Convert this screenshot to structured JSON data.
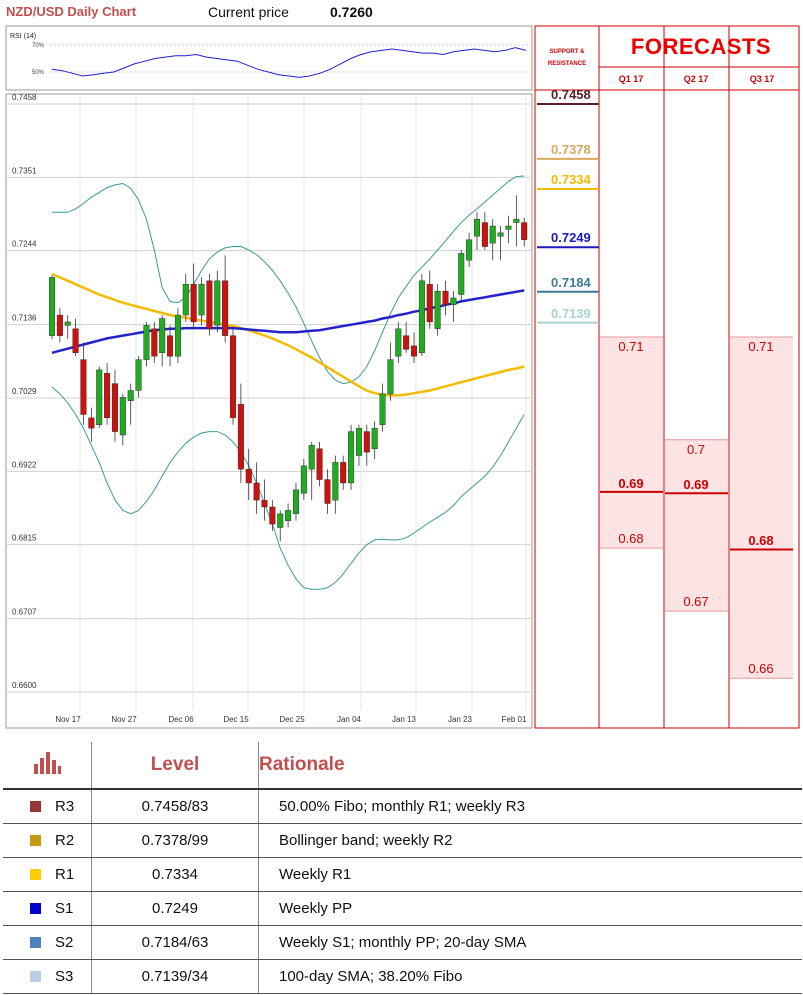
{
  "header": {
    "title": "NZD/USD Daily Chart",
    "current_price_label": "Current price",
    "current_price_value": "0.7260"
  },
  "colors": {
    "bull": "#22aa22",
    "bear": "#cc1111",
    "sma20": "#2222cc",
    "sma100": "#f5bb00",
    "bollinger": "#3a9a9a",
    "grid": "#d0d0d0",
    "forecast_red": "#cc0000",
    "forecast_fill": "#fde3e3"
  },
  "rsi": {
    "label": "RSI (14)",
    "levels": [
      "70%",
      "50%"
    ],
    "values": [
      52,
      51,
      49,
      47,
      48,
      49,
      50,
      53,
      56,
      58,
      60,
      61,
      62,
      62,
      63,
      61,
      60,
      59,
      58,
      55,
      52,
      50,
      48,
      47,
      46,
      47,
      49,
      52,
      56,
      60,
      63,
      65,
      66,
      67,
      66,
      65,
      64,
      64,
      63,
      65,
      66,
      67,
      66,
      65,
      66,
      68,
      66
    ]
  },
  "chart_data": [
    {
      "type": "candlestick",
      "title": "NZD/USD Daily Chart",
      "ylim": [
        0.66,
        0.7458
      ],
      "y_ticks": [
        "0.7458",
        "0.7351",
        "0.7244",
        "0.7136",
        "0.7029",
        "0.6922",
        "0.6815",
        "0.6707",
        "0.6600"
      ],
      "x_ticks": [
        "Nov 17",
        "Nov 27",
        "Dec 06",
        "Dec 15",
        "Dec 25",
        "Jan 04",
        "Jan 13",
        "Jan 23",
        "Feb 01"
      ],
      "candles": [
        {
          "o": 0.712,
          "h": 0.7208,
          "l": 0.7115,
          "c": 0.7205
        },
        {
          "o": 0.715,
          "h": 0.716,
          "l": 0.711,
          "c": 0.712
        },
        {
          "o": 0.7135,
          "h": 0.715,
          "l": 0.7115,
          "c": 0.714
        },
        {
          "o": 0.713,
          "h": 0.7145,
          "l": 0.709,
          "c": 0.7095
        },
        {
          "o": 0.7085,
          "h": 0.711,
          "l": 0.699,
          "c": 0.7005
        },
        {
          "o": 0.7,
          "h": 0.7015,
          "l": 0.6965,
          "c": 0.6985
        },
        {
          "o": 0.699,
          "h": 0.7075,
          "l": 0.6985,
          "c": 0.707
        },
        {
          "o": 0.7065,
          "h": 0.708,
          "l": 0.699,
          "c": 0.7
        },
        {
          "o": 0.705,
          "h": 0.707,
          "l": 0.6965,
          "c": 0.698
        },
        {
          "o": 0.6975,
          "h": 0.7035,
          "l": 0.696,
          "c": 0.703
        },
        {
          "o": 0.7025,
          "h": 0.705,
          "l": 0.699,
          "c": 0.704
        },
        {
          "o": 0.704,
          "h": 0.709,
          "l": 0.703,
          "c": 0.7085
        },
        {
          "o": 0.7085,
          "h": 0.714,
          "l": 0.7075,
          "c": 0.7135
        },
        {
          "o": 0.713,
          "h": 0.714,
          "l": 0.708,
          "c": 0.709
        },
        {
          "o": 0.7095,
          "h": 0.715,
          "l": 0.7075,
          "c": 0.7145
        },
        {
          "o": 0.712,
          "h": 0.7135,
          "l": 0.7075,
          "c": 0.709
        },
        {
          "o": 0.709,
          "h": 0.716,
          "l": 0.708,
          "c": 0.715
        },
        {
          "o": 0.715,
          "h": 0.721,
          "l": 0.714,
          "c": 0.7195
        },
        {
          "o": 0.7195,
          "h": 0.7225,
          "l": 0.713,
          "c": 0.714
        },
        {
          "o": 0.715,
          "h": 0.7205,
          "l": 0.7135,
          "c": 0.7195
        },
        {
          "o": 0.72,
          "h": 0.721,
          "l": 0.712,
          "c": 0.713
        },
        {
          "o": 0.7135,
          "h": 0.7215,
          "l": 0.7125,
          "c": 0.72
        },
        {
          "o": 0.72,
          "h": 0.7237,
          "l": 0.711,
          "c": 0.712
        },
        {
          "o": 0.712,
          "h": 0.713,
          "l": 0.699,
          "c": 0.7
        },
        {
          "o": 0.702,
          "h": 0.705,
          "l": 0.6905,
          "c": 0.6925
        },
        {
          "o": 0.6925,
          "h": 0.6955,
          "l": 0.688,
          "c": 0.6905
        },
        {
          "o": 0.6905,
          "h": 0.6935,
          "l": 0.686,
          "c": 0.688
        },
        {
          "o": 0.688,
          "h": 0.691,
          "l": 0.685,
          "c": 0.687
        },
        {
          "o": 0.687,
          "h": 0.688,
          "l": 0.6835,
          "c": 0.6845
        },
        {
          "o": 0.684,
          "h": 0.6865,
          "l": 0.682,
          "c": 0.686
        },
        {
          "o": 0.685,
          "h": 0.6875,
          "l": 0.684,
          "c": 0.6865
        },
        {
          "o": 0.686,
          "h": 0.6905,
          "l": 0.685,
          "c": 0.6895
        },
        {
          "o": 0.689,
          "h": 0.694,
          "l": 0.688,
          "c": 0.693
        },
        {
          "o": 0.6925,
          "h": 0.6965,
          "l": 0.688,
          "c": 0.696
        },
        {
          "o": 0.6955,
          "h": 0.6965,
          "l": 0.69,
          "c": 0.691
        },
        {
          "o": 0.691,
          "h": 0.6925,
          "l": 0.686,
          "c": 0.6875
        },
        {
          "o": 0.688,
          "h": 0.6945,
          "l": 0.686,
          "c": 0.6935
        },
        {
          "o": 0.6935,
          "h": 0.6945,
          "l": 0.6895,
          "c": 0.6905
        },
        {
          "o": 0.6905,
          "h": 0.699,
          "l": 0.6895,
          "c": 0.698
        },
        {
          "o": 0.6945,
          "h": 0.699,
          "l": 0.693,
          "c": 0.6985
        },
        {
          "o": 0.698,
          "h": 0.699,
          "l": 0.693,
          "c": 0.695
        },
        {
          "o": 0.6955,
          "h": 0.6995,
          "l": 0.694,
          "c": 0.6985
        },
        {
          "o": 0.699,
          "h": 0.705,
          "l": 0.698,
          "c": 0.7035
        },
        {
          "o": 0.7035,
          "h": 0.711,
          "l": 0.7025,
          "c": 0.7085
        },
        {
          "o": 0.709,
          "h": 0.714,
          "l": 0.708,
          "c": 0.713
        },
        {
          "o": 0.712,
          "h": 0.714,
          "l": 0.7095,
          "c": 0.71
        },
        {
          "o": 0.7105,
          "h": 0.7125,
          "l": 0.708,
          "c": 0.709
        },
        {
          "o": 0.7095,
          "h": 0.721,
          "l": 0.709,
          "c": 0.72
        },
        {
          "o": 0.7195,
          "h": 0.7215,
          "l": 0.713,
          "c": 0.714
        },
        {
          "o": 0.713,
          "h": 0.7195,
          "l": 0.712,
          "c": 0.7185
        },
        {
          "o": 0.7185,
          "h": 0.72,
          "l": 0.715,
          "c": 0.7165
        },
        {
          "o": 0.7165,
          "h": 0.7185,
          "l": 0.714,
          "c": 0.7175
        },
        {
          "o": 0.718,
          "h": 0.7245,
          "l": 0.717,
          "c": 0.724
        },
        {
          "o": 0.723,
          "h": 0.727,
          "l": 0.722,
          "c": 0.726
        },
        {
          "o": 0.7265,
          "h": 0.73,
          "l": 0.7245,
          "c": 0.729
        },
        {
          "o": 0.7285,
          "h": 0.73,
          "l": 0.7245,
          "c": 0.725
        },
        {
          "o": 0.7255,
          "h": 0.729,
          "l": 0.723,
          "c": 0.728
        },
        {
          "o": 0.7265,
          "h": 0.728,
          "l": 0.723,
          "c": 0.727
        },
        {
          "o": 0.7275,
          "h": 0.7295,
          "l": 0.7255,
          "c": 0.728
        },
        {
          "o": 0.7285,
          "h": 0.7325,
          "l": 0.725,
          "c": 0.729
        },
        {
          "o": 0.7285,
          "h": 0.7292,
          "l": 0.725,
          "c": 0.726
        }
      ],
      "sma20": [
        0.7095,
        0.7098,
        0.7101,
        0.7104,
        0.7107,
        0.711,
        0.7113,
        0.7116,
        0.7118,
        0.712,
        0.7122,
        0.7124,
        0.7126,
        0.7128,
        0.7129,
        0.713,
        0.713,
        0.7131,
        0.7131,
        0.7131,
        0.7131,
        0.7131,
        0.7131,
        0.7131,
        0.713,
        0.7129,
        0.7128,
        0.7127,
        0.7126,
        0.7125,
        0.7125,
        0.7125,
        0.7126,
        0.7127,
        0.7128,
        0.713,
        0.7132,
        0.7134,
        0.7136,
        0.7138,
        0.714,
        0.7142,
        0.7145,
        0.7147,
        0.715,
        0.7152,
        0.7155,
        0.7157,
        0.716,
        0.7162,
        0.7165,
        0.7167,
        0.717,
        0.7172,
        0.7174,
        0.7176,
        0.7178,
        0.718,
        0.7182,
        0.7184,
        0.7186
      ],
      "sma100": [
        0.721,
        0.7205,
        0.72,
        0.7195,
        0.719,
        0.7185,
        0.718,
        0.7176,
        0.7172,
        0.7168,
        0.7165,
        0.7162,
        0.7159,
        0.7156,
        0.7153,
        0.715,
        0.7148,
        0.7146,
        0.7144,
        0.7142,
        0.714,
        0.7138,
        0.7136,
        0.7134,
        0.7131,
        0.7128,
        0.7124,
        0.712,
        0.7116,
        0.7111,
        0.7106,
        0.71,
        0.7094,
        0.7088,
        0.7081,
        0.7074,
        0.7067,
        0.706,
        0.7053,
        0.7046,
        0.704,
        0.7036,
        0.7034,
        0.7033,
        0.7033,
        0.7034,
        0.7036,
        0.7038,
        0.704,
        0.7043,
        0.7046,
        0.7049,
        0.7052,
        0.7055,
        0.7058,
        0.7061,
        0.7064,
        0.7067,
        0.707,
        0.7072,
        0.7075
      ],
      "bollinger_upper": [
        0.73,
        0.73,
        0.73,
        0.7305,
        0.7313,
        0.7322,
        0.7329,
        0.7336,
        0.734,
        0.7342,
        0.7335,
        0.7318,
        0.729,
        0.7245,
        0.719,
        0.717,
        0.7168,
        0.7176,
        0.7195,
        0.7215,
        0.7232,
        0.7242,
        0.7248,
        0.725,
        0.725,
        0.7245,
        0.7238,
        0.7228,
        0.7215,
        0.72,
        0.7182,
        0.7162,
        0.7138,
        0.7112,
        0.7088,
        0.7068,
        0.7055,
        0.705,
        0.7052,
        0.706,
        0.7075,
        0.7098,
        0.7125,
        0.7152,
        0.7175,
        0.7192,
        0.7208,
        0.722,
        0.7232,
        0.7245,
        0.7258,
        0.7272,
        0.7285,
        0.7296,
        0.7305,
        0.7315,
        0.7325,
        0.7335,
        0.7345,
        0.7352,
        0.7353
      ],
      "bollinger_lower": [
        0.7045,
        0.7035,
        0.7022,
        0.7005,
        0.6985,
        0.696,
        0.6935,
        0.6905,
        0.688,
        0.6865,
        0.686,
        0.6865,
        0.6878,
        0.6895,
        0.6915,
        0.6935,
        0.695,
        0.6963,
        0.6972,
        0.6978,
        0.698,
        0.698,
        0.6975,
        0.6965,
        0.695,
        0.693,
        0.6905,
        0.6875,
        0.6845,
        0.681,
        0.6785,
        0.6765,
        0.6752,
        0.675,
        0.675,
        0.6752,
        0.676,
        0.6772,
        0.6788,
        0.6803,
        0.6815,
        0.6822,
        0.6823,
        0.6822,
        0.6822,
        0.6825,
        0.6832,
        0.684,
        0.6848,
        0.6855,
        0.6862,
        0.6872,
        0.6885,
        0.6895,
        0.6905,
        0.6915,
        0.6928,
        0.6945,
        0.6965,
        0.6985,
        0.7005
      ]
    },
    {
      "type": "table",
      "title": "FORECASTS",
      "support_resistance_header": "SUPPORT & RESISTANCE",
      "quarters": [
        "Q1 17",
        "Q2 17",
        "Q3 17"
      ],
      "support_resistance": [
        {
          "label": "0.7458",
          "value": 0.7458,
          "color": "#5a1e2e"
        },
        {
          "label": "0.7378",
          "value": 0.7378,
          "color": "#d9a95b"
        },
        {
          "label": "0.7334",
          "value": 0.7334,
          "color": "#f5bb00"
        },
        {
          "label": "0.7249",
          "value": 0.7249,
          "color": "#1a1abf"
        },
        {
          "label": "0.7184",
          "value": 0.7184,
          "color": "#3d7a96"
        },
        {
          "label": "0.7139",
          "value": 0.7139,
          "color": "#a8d4d8"
        }
      ],
      "forecasts": [
        {
          "quarter": "Q1 17",
          "high": "0.71",
          "median": "0.69",
          "low": "0.68",
          "v_high": 0.7118,
          "v_median": 0.6892,
          "v_low": 0.681
        },
        {
          "quarter": "Q2 17",
          "high": "0.7",
          "median": "0.69",
          "low": "0.67",
          "v_high": 0.6968,
          "v_median": 0.689,
          "v_low": 0.6718
        },
        {
          "quarter": "Q3 17",
          "high": "0.71",
          "median": "0.68",
          "low": "0.66",
          "v_high": 0.7118,
          "v_median": 0.6808,
          "v_low": 0.662
        }
      ]
    }
  ],
  "levels_table": {
    "headers": {
      "level": "Level",
      "rationale": "Rationale"
    },
    "icon": "bar-chart-icon",
    "rows": [
      {
        "name": "R3",
        "level": "0.7458/83",
        "rationale": "50.00% Fibo; monthly R1; weekly R3",
        "color": "#953735"
      },
      {
        "name": "R2",
        "level": "0.7378/99",
        "rationale": "Bollinger band; weekly R2",
        "color": "#c39b12"
      },
      {
        "name": "R1",
        "level": "0.7334",
        "rationale": "Weekly R1",
        "color": "#ffcc00"
      },
      {
        "name": "S1",
        "level": "0.7249",
        "rationale": "Weekly PP",
        "color": "#0000cc"
      },
      {
        "name": "S2",
        "level": "0.7184/63",
        "rationale": "Weekly S1; monthly PP; 20-day SMA",
        "color": "#4f81bd"
      },
      {
        "name": "S3",
        "level": "0.7139/34",
        "rationale": "100-day SMA; 38.20% Fibo",
        "color": "#b9cde5"
      }
    ]
  }
}
